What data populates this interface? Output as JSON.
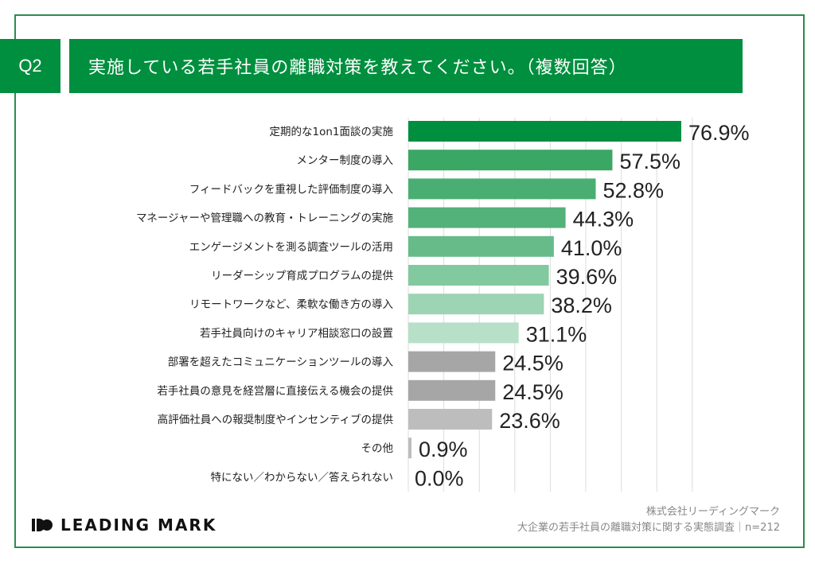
{
  "header": {
    "question_no": "Q2",
    "title": "実施している若手社員の離職対策を教えてください。（複数回答）"
  },
  "chart_data": {
    "type": "bar",
    "orientation": "horizontal",
    "categories": [
      "定期的な1on1面談の実施",
      "メンター制度の導入",
      "フィードバックを重視した評価制度の導入",
      "マネージャーや管理職への教育・トレーニングの実施",
      "エンゲージメントを測る調査ツールの活用",
      "リーダーシップ育成プログラムの提供",
      "リモートワークなど、柔軟な働き方の導入",
      "若手社員向けのキャリア相談窓口の設置",
      "部署を超えたコミュニケーションツールの導入",
      "若手社員の意見を経営層に直接伝える機会の提供",
      "高評価社員への報奨制度やインセンティブの提供",
      "その他",
      "特にない／わからない／答えられない"
    ],
    "values": [
      76.9,
      57.5,
      52.8,
      44.3,
      41.0,
      39.6,
      38.2,
      31.1,
      24.5,
      24.5,
      23.6,
      0.9,
      0.0
    ],
    "labels": [
      "76.9%",
      "57.5%",
      "52.8%",
      "44.3%",
      "41.0%",
      "39.6%",
      "38.2%",
      "31.1%",
      "24.5%",
      "24.5%",
      "23.6%",
      "0.9%",
      "0.0%"
    ],
    "colors": [
      "#008f3e",
      "#3aa765",
      "#4aae72",
      "#52b27a",
      "#66bb89",
      "#83c9a0",
      "#9dd4b4",
      "#b8e0c8",
      "#a6a6a6",
      "#a6a6a6",
      "#bdbdbd",
      "#bdbdbd",
      "#bdbdbd"
    ],
    "xlim": [
      0,
      80
    ],
    "grid": true,
    "title": "",
    "xlabel": "",
    "ylabel": ""
  },
  "footer": {
    "logo": "LEADING MARK",
    "company": "株式会社リーディングマーク",
    "survey": "大企業の若手社員の離職対策に関する実態調査｜n=212"
  }
}
